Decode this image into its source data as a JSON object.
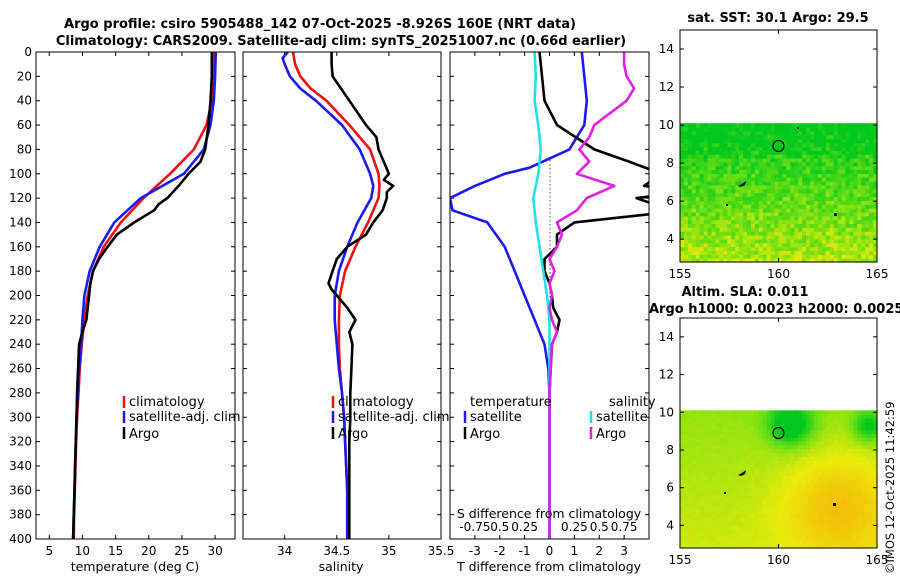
{
  "figure": {
    "title_line1": "Argo profile: csiro 5905488_142 07-Oct-2025 -8.926S 160E (NRT data)",
    "title_line2": "Climatology: CARS2009. Satellite-adj clim: synTS_20251007.nc (0.66d earlier)",
    "stamp": "©IMOS 12-Oct-2025 11:42:59"
  },
  "colors": {
    "red": "#ee1111",
    "blue": "#1a1aee",
    "black": "#000000",
    "cyan": "#22e0e8",
    "magenta": "#e020e0"
  },
  "chart_data": [
    {
      "type": "line",
      "name": "temperature-profile",
      "xlabel": "temperature (deg C)",
      "ylabel": "depth",
      "xlim": [
        3,
        33
      ],
      "ylim": [
        400,
        0
      ],
      "xticks": [
        "5",
        "10",
        "15",
        "20",
        "25",
        "30"
      ],
      "yticks": [
        "0",
        "20",
        "40",
        "60",
        "80",
        "100",
        "120",
        "140",
        "160",
        "180",
        "200",
        "220",
        "240",
        "260",
        "280",
        "300",
        "320",
        "340",
        "360",
        "380",
        "400"
      ],
      "legend": [
        "climatology",
        "satellite-adj. clim",
        "Argo"
      ],
      "series": [
        {
          "name": "climatology",
          "color": "red",
          "depth": [
            0,
            20,
            40,
            60,
            80,
            100,
            120,
            140,
            160,
            180,
            200,
            220,
            240,
            260,
            280,
            300,
            320,
            340,
            360,
            380,
            400
          ],
          "values": [
            29.8,
            29.7,
            29.5,
            28.7,
            26.8,
            23.2,
            19.2,
            15.8,
            13.2,
            11.6,
            10.8,
            10.3,
            9.9,
            9.6,
            9.4,
            9.2,
            9.05,
            8.95,
            8.85,
            8.75,
            8.7
          ]
        },
        {
          "name": "satellite-adj. clim",
          "color": "blue",
          "depth": [
            0,
            20,
            40,
            60,
            80,
            100,
            120,
            140,
            160,
            180,
            200,
            220,
            240,
            260,
            280,
            300,
            320,
            340,
            360,
            380,
            400
          ],
          "values": [
            30.1,
            30.0,
            29.8,
            29.3,
            28.3,
            25.3,
            18.8,
            14.8,
            12.6,
            11.1,
            10.3,
            10.0,
            9.8,
            9.5,
            9.3,
            9.1,
            9.0,
            8.9,
            8.8,
            8.7,
            8.6
          ]
        },
        {
          "name": "Argo",
          "color": "black",
          "depth": [
            0,
            20,
            40,
            60,
            80,
            90,
            100,
            110,
            120,
            125,
            130,
            140,
            150,
            160,
            170,
            180,
            190,
            200,
            210,
            220,
            230,
            240,
            260,
            280,
            300,
            320,
            340,
            360,
            380,
            400
          ],
          "values": [
            29.5,
            29.5,
            29.3,
            29.0,
            28.5,
            27.8,
            26.0,
            24.5,
            22.8,
            21.5,
            20.8,
            17.8,
            15.2,
            13.8,
            12.5,
            11.6,
            11.2,
            11.0,
            10.8,
            10.6,
            10.0,
            9.5,
            9.35,
            9.2,
            9.1,
            9.0,
            8.9,
            8.8,
            8.7,
            8.6
          ]
        }
      ]
    },
    {
      "type": "line",
      "name": "salinity-profile",
      "xlabel": "salinity",
      "xlim": [
        33.6,
        35.5
      ],
      "ylim": [
        400,
        0
      ],
      "xticks": [
        "34",
        "34.5",
        "35",
        "35.5"
      ],
      "legend": [
        "climatology",
        "satellite-adj. clim",
        "Argo"
      ],
      "series": [
        {
          "name": "climatology",
          "color": "red",
          "depth": [
            0,
            10,
            20,
            30,
            40,
            60,
            80,
            100,
            110,
            120,
            140,
            160,
            180,
            200,
            220,
            240,
            260,
            280,
            300,
            320,
            340,
            360,
            380,
            400
          ],
          "values": [
            34.08,
            34.1,
            34.15,
            34.25,
            34.4,
            34.62,
            34.82,
            34.9,
            34.91,
            34.9,
            34.8,
            34.68,
            34.58,
            34.53,
            34.52,
            34.52,
            34.53,
            34.55,
            34.57,
            34.58,
            34.59,
            34.6,
            34.61,
            34.61
          ]
        },
        {
          "name": "satellite-adj. clim",
          "color": "blue",
          "depth": [
            0,
            5,
            10,
            20,
            30,
            40,
            60,
            80,
            100,
            110,
            120,
            140,
            160,
            180,
            200,
            220,
            240,
            260,
            280,
            300,
            320,
            340,
            360,
            380,
            400
          ],
          "values": [
            34.03,
            33.98,
            34.0,
            34.05,
            34.15,
            34.3,
            34.55,
            34.72,
            34.82,
            34.85,
            34.83,
            34.7,
            34.6,
            34.52,
            34.48,
            34.48,
            34.5,
            34.52,
            34.55,
            34.57,
            34.58,
            34.59,
            34.6,
            34.6,
            34.6
          ]
        },
        {
          "name": "Argo",
          "color": "black",
          "depth": [
            0,
            10,
            20,
            25,
            40,
            60,
            70,
            80,
            90,
            100,
            105,
            110,
            115,
            120,
            130,
            140,
            150,
            160,
            170,
            180,
            190,
            195,
            200,
            210,
            220,
            230,
            240,
            260,
            280,
            300,
            320,
            340,
            360,
            380,
            400
          ],
          "values": [
            34.45,
            34.45,
            34.46,
            34.5,
            34.62,
            34.78,
            34.88,
            34.9,
            34.95,
            35.0,
            34.95,
            35.04,
            34.98,
            34.98,
            34.94,
            34.85,
            34.78,
            34.6,
            34.5,
            34.46,
            34.42,
            34.45,
            34.5,
            34.6,
            34.68,
            34.62,
            34.65,
            34.64,
            34.63,
            34.63,
            34.62,
            34.62,
            34.62,
            34.62,
            34.62
          ]
        }
      ]
    },
    {
      "type": "line",
      "name": "difference-profile",
      "xlabel": "T difference from climatology",
      "xlabel_top": "S difference from climatology",
      "xlim": [
        -4,
        4
      ],
      "ylim": [
        400,
        0
      ],
      "xticks": [
        "-3",
        "-2",
        "-1",
        "0",
        "1",
        "2",
        "3"
      ],
      "xticks_top": [
        "-0.75",
        "0.5",
        "0.25",
        "0.25",
        "0.5",
        "0.75"
      ],
      "legend_temp_title": "temperature",
      "legend_sal_title": "salinity",
      "legend_items": [
        "satellite",
        "Argo",
        "satellite",
        "Argo"
      ],
      "series": [
        {
          "name": "temperature satellite",
          "color": "blue",
          "depth": [
            0,
            20,
            40,
            60,
            80,
            95,
            100,
            110,
            120,
            130,
            140,
            160,
            180,
            200,
            220,
            240,
            260,
            280,
            300,
            340,
            400
          ],
          "values": [
            1.3,
            1.4,
            1.5,
            1.4,
            0.8,
            -0.8,
            -1.8,
            -3.0,
            -4.0,
            -3.9,
            -2.5,
            -1.8,
            -1.4,
            -1.0,
            -0.6,
            -0.2,
            -0.05,
            0.0,
            0.0,
            0.0,
            0.0
          ]
        },
        {
          "name": "temperature Argo",
          "color": "black",
          "depth": [
            0,
            20,
            40,
            60,
            80,
            90,
            100,
            110,
            115,
            120,
            125,
            130,
            140,
            150,
            160,
            170,
            180,
            190,
            200,
            210,
            220,
            230,
            240,
            260,
            280,
            300,
            340,
            400
          ],
          "values": [
            -0.4,
            -0.3,
            -0.2,
            0.3,
            1.8,
            3.2,
            4.5,
            3.8,
            5.5,
            3.5,
            4.2,
            5.5,
            1.0,
            0.3,
            0.3,
            -0.2,
            -0.2,
            0.0,
            0.1,
            0.15,
            0.4,
            0.3,
            0.1,
            0.05,
            0.0,
            0.0,
            0.0,
            0.0
          ]
        },
        {
          "name": "salinity satellite",
          "color": "cyan",
          "depth": [
            0,
            20,
            40,
            60,
            80,
            100,
            120,
            140,
            160,
            180,
            200,
            210,
            220,
            240,
            260,
            300,
            400
          ],
          "values": [
            -0.6,
            -0.55,
            -0.6,
            -0.45,
            -0.35,
            -0.45,
            -0.65,
            -0.55,
            -0.4,
            -0.25,
            -0.1,
            -0.05,
            0.0,
            0.0,
            0.0,
            0.0,
            0.0
          ]
        },
        {
          "name": "salinity Argo",
          "color": "magenta",
          "depth": [
            0,
            10,
            20,
            30,
            40,
            60,
            70,
            80,
            90,
            100,
            110,
            120,
            130,
            140,
            150,
            160,
            170,
            180,
            190,
            200,
            210,
            220,
            230,
            240,
            260,
            280,
            300,
            340,
            400
          ],
          "values": [
            3.0,
            3.0,
            3.1,
            3.4,
            3.1,
            1.8,
            1.6,
            1.2,
            1.6,
            1.1,
            2.6,
            1.5,
            1.1,
            0.3,
            0.5,
            0.3,
            0.0,
            0.2,
            0.0,
            0.1,
            0.0,
            0.1,
            0.3,
            0.1,
            0.05,
            0.0,
            0.0,
            0.0,
            0.0
          ]
        }
      ]
    },
    {
      "type": "heatmap",
      "name": "sst-map",
      "title": "sat. SST: 30.1 Argo: 29.5",
      "xlim": [
        155,
        165
      ],
      "ylim": [
        2.8,
        15
      ],
      "xticks": [
        "155",
        "160",
        "165"
      ],
      "yticks": [
        "4",
        "6",
        "8",
        "10",
        "12",
        "14"
      ],
      "data_ylim": [
        2.8,
        10.1
      ],
      "profile_location": [
        160,
        8.9
      ]
    },
    {
      "type": "heatmap",
      "name": "sla-map",
      "title_line1": "Altim. SLA: 0.011",
      "title_line2": "Argo h1000: 0.0023 h2000: 0.0025",
      "xlim": [
        155,
        165
      ],
      "ylim": [
        2.8,
        15
      ],
      "xticks": [
        "155",
        "160",
        "165"
      ],
      "yticks": [
        "4",
        "6",
        "8",
        "10",
        "12",
        "14"
      ],
      "data_ylim": [
        2.8,
        10.1
      ],
      "profile_location": [
        160,
        8.9
      ]
    }
  ]
}
